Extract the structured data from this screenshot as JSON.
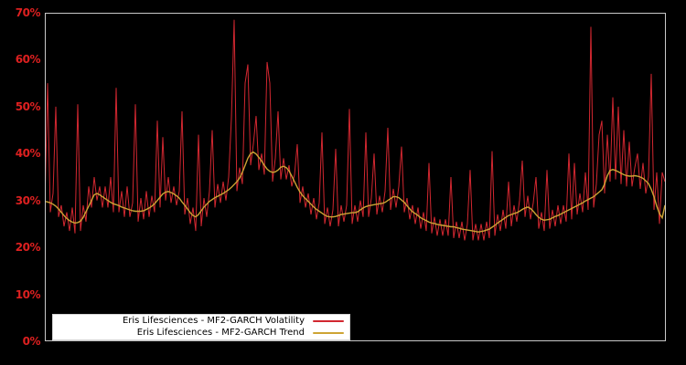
{
  "colors": {
    "background": "#000000",
    "plot_border": "#c8c8c8",
    "tick_label": "#dd2020",
    "legend_background": "#ffffff",
    "volatility_line": "#d22730",
    "trend_line": "#cda434"
  },
  "legend": {
    "position": "lower-left",
    "entries": [
      {
        "label": "Eris Lifesciences - MF2-GARCH Volatility",
        "swatch": "red-line"
      },
      {
        "label": "Eris Lifesciences - MF2-GARCH Trend",
        "swatch": "gold-line"
      }
    ]
  },
  "chart_data": {
    "type": "line",
    "title": "",
    "xlabel": "",
    "ylabel": "",
    "unit": "percent",
    "ylim": [
      0,
      70
    ],
    "yticks": [
      "0%",
      "10%",
      "20%",
      "30%",
      "40%",
      "50%",
      "60%",
      "70%"
    ],
    "x_tick_labels_shown": false,
    "grid": false,
    "legend_position": "lower left",
    "series": [
      {
        "name": "Eris Lifesciences - MF2-GARCH Volatility",
        "color": "#d22730",
        "values": [
          28.5,
          55,
          27.5,
          31.5,
          50,
          26.5,
          29,
          24.5,
          27.5,
          23.5,
          28.5,
          23,
          50.5,
          23.5,
          29,
          25.5,
          33,
          28.5,
          35,
          30,
          33,
          28.5,
          33,
          28.5,
          35,
          27.5,
          54,
          27.5,
          32,
          26.5,
          33,
          26.5,
          29.5,
          50.5,
          25.5,
          30.5,
          26,
          32,
          26.5,
          31,
          27.5,
          47,
          28.5,
          43.5,
          30,
          35,
          29.5,
          33,
          29,
          32,
          49,
          27,
          30.5,
          25,
          28.5,
          23.5,
          44,
          24.5,
          30.5,
          26.5,
          32,
          45,
          28.5,
          33.5,
          29.5,
          34,
          30,
          35,
          47.5,
          68.5,
          32,
          37,
          33.5,
          55,
          59,
          37.5,
          42,
          48,
          36.5,
          40,
          35.5,
          59.5,
          55,
          34,
          39,
          49,
          34.5,
          39,
          34.5,
          37.5,
          33,
          35.5,
          42,
          29.5,
          33,
          28.5,
          31.5,
          27,
          30.5,
          26,
          29.5,
          44.5,
          25,
          28.5,
          24.5,
          28,
          41,
          24.5,
          29,
          25.5,
          29,
          49.5,
          25,
          29,
          25.5,
          30,
          26.5,
          44.5,
          26.5,
          30.5,
          40,
          27,
          31,
          27.5,
          32,
          45.5,
          28,
          32.5,
          28.5,
          33,
          41.5,
          27.5,
          30.5,
          26,
          29,
          25,
          28.5,
          24,
          27.5,
          23.5,
          38,
          23,
          26.5,
          22.5,
          26,
          22.5,
          26,
          22.5,
          35,
          22,
          25.5,
          22,
          25.5,
          21.5,
          25,
          36.5,
          21.5,
          25,
          21.5,
          25,
          21.5,
          25.5,
          22,
          40.5,
          22.5,
          27,
          23.5,
          28,
          24,
          34,
          24.5,
          29,
          25.5,
          30,
          38.5,
          26.5,
          31,
          26,
          29.5,
          35,
          24,
          27.5,
          23.5,
          36.5,
          24,
          28,
          24.5,
          29,
          25,
          29,
          25.5,
          40,
          26,
          38,
          27,
          31.5,
          27.5,
          36,
          28,
          67,
          28.5,
          33.5,
          44,
          47,
          31.5,
          44,
          34,
          52,
          34.5,
          50,
          33.5,
          45,
          33,
          42.5,
          33,
          37,
          40,
          32.5,
          38,
          31.5,
          35,
          57,
          28,
          36,
          25,
          36,
          34
        ]
      },
      {
        "name": "Eris Lifesciences - MF2-GARCH Trend",
        "color": "#cda434",
        "values": [
          29.8,
          29.7,
          29.5,
          29.2,
          28.8,
          28.2,
          27.5,
          26.8,
          26.2,
          25.7,
          25.4,
          25.2,
          25.3,
          25.6,
          26.4,
          27.6,
          28.8,
          30,
          31.2,
          31.5,
          31.2,
          30.8,
          30.4,
          30,
          29.6,
          29.3,
          29.1,
          28.9,
          28.6,
          28.4,
          28.2,
          28,
          27.8,
          27.7,
          27.7,
          27.7,
          27.8,
          28.1,
          28.4,
          28.8,
          29.3,
          30,
          30.7,
          31.4,
          31.8,
          31.9,
          31.7,
          31.4,
          31,
          30.5,
          29.7,
          29,
          28.2,
          27.4,
          26.8,
          26.5,
          27,
          27.8,
          28.6,
          29.2,
          29.8,
          30.2,
          30.6,
          30.9,
          31.2,
          31.5,
          31.9,
          32.3,
          32.8,
          33.4,
          34,
          34.8,
          36,
          37.5,
          39,
          40,
          40.3,
          39.9,
          39.2,
          38.4,
          37.5,
          36.7,
          36.2,
          36,
          36.1,
          36.5,
          37.1,
          37.3,
          37,
          36.3,
          35.2,
          34,
          32.8,
          31.8,
          31,
          30.4,
          29.8,
          29.2,
          28.6,
          28.1,
          27.7,
          27.3,
          26.9,
          26.6,
          26.5,
          26.5,
          26.6,
          26.8,
          27,
          27.1,
          27.2,
          27.3,
          27.4,
          27.4,
          27.6,
          28,
          28.4,
          28.7,
          28.9,
          29,
          29.1,
          29.2,
          29.3,
          29.4,
          29.6,
          30,
          30.4,
          30.8,
          30.8,
          30.6,
          30.1,
          29.6,
          28.9,
          28.2,
          27.6,
          27.2,
          26.8,
          26.3,
          26,
          25.7,
          25.4,
          25.2,
          25.1,
          24.9,
          24.8,
          24.7,
          24.6,
          24.5,
          24.4,
          24.4,
          24.2,
          24.1,
          23.9,
          23.8,
          23.7,
          23.6,
          23.5,
          23.4,
          23.3,
          23.4,
          23.5,
          23.7,
          23.9,
          24.3,
          24.7,
          25.2,
          25.6,
          26,
          26.4,
          26.8,
          27,
          27.2,
          27.4,
          27.7,
          28.1,
          28.4,
          28.6,
          28.3,
          27.7,
          27,
          26.4,
          26,
          25.8,
          25.9,
          26,
          26.3,
          26.6,
          26.8,
          27.1,
          27.4,
          27.7,
          28,
          28.3,
          28.6,
          28.9,
          29.2,
          29.5,
          29.9,
          30.2,
          30.5,
          30.8,
          31.3,
          31.8,
          32.3,
          33.5,
          35.3,
          36.4,
          36.6,
          36.4,
          36.1,
          35.8,
          35.5,
          35.3,
          35.2,
          35.2,
          35.3,
          35.2,
          35,
          34.7,
          34.2,
          33.6,
          32.4,
          30.8,
          28.8,
          27.2,
          26.3,
          29
        ]
      }
    ]
  }
}
